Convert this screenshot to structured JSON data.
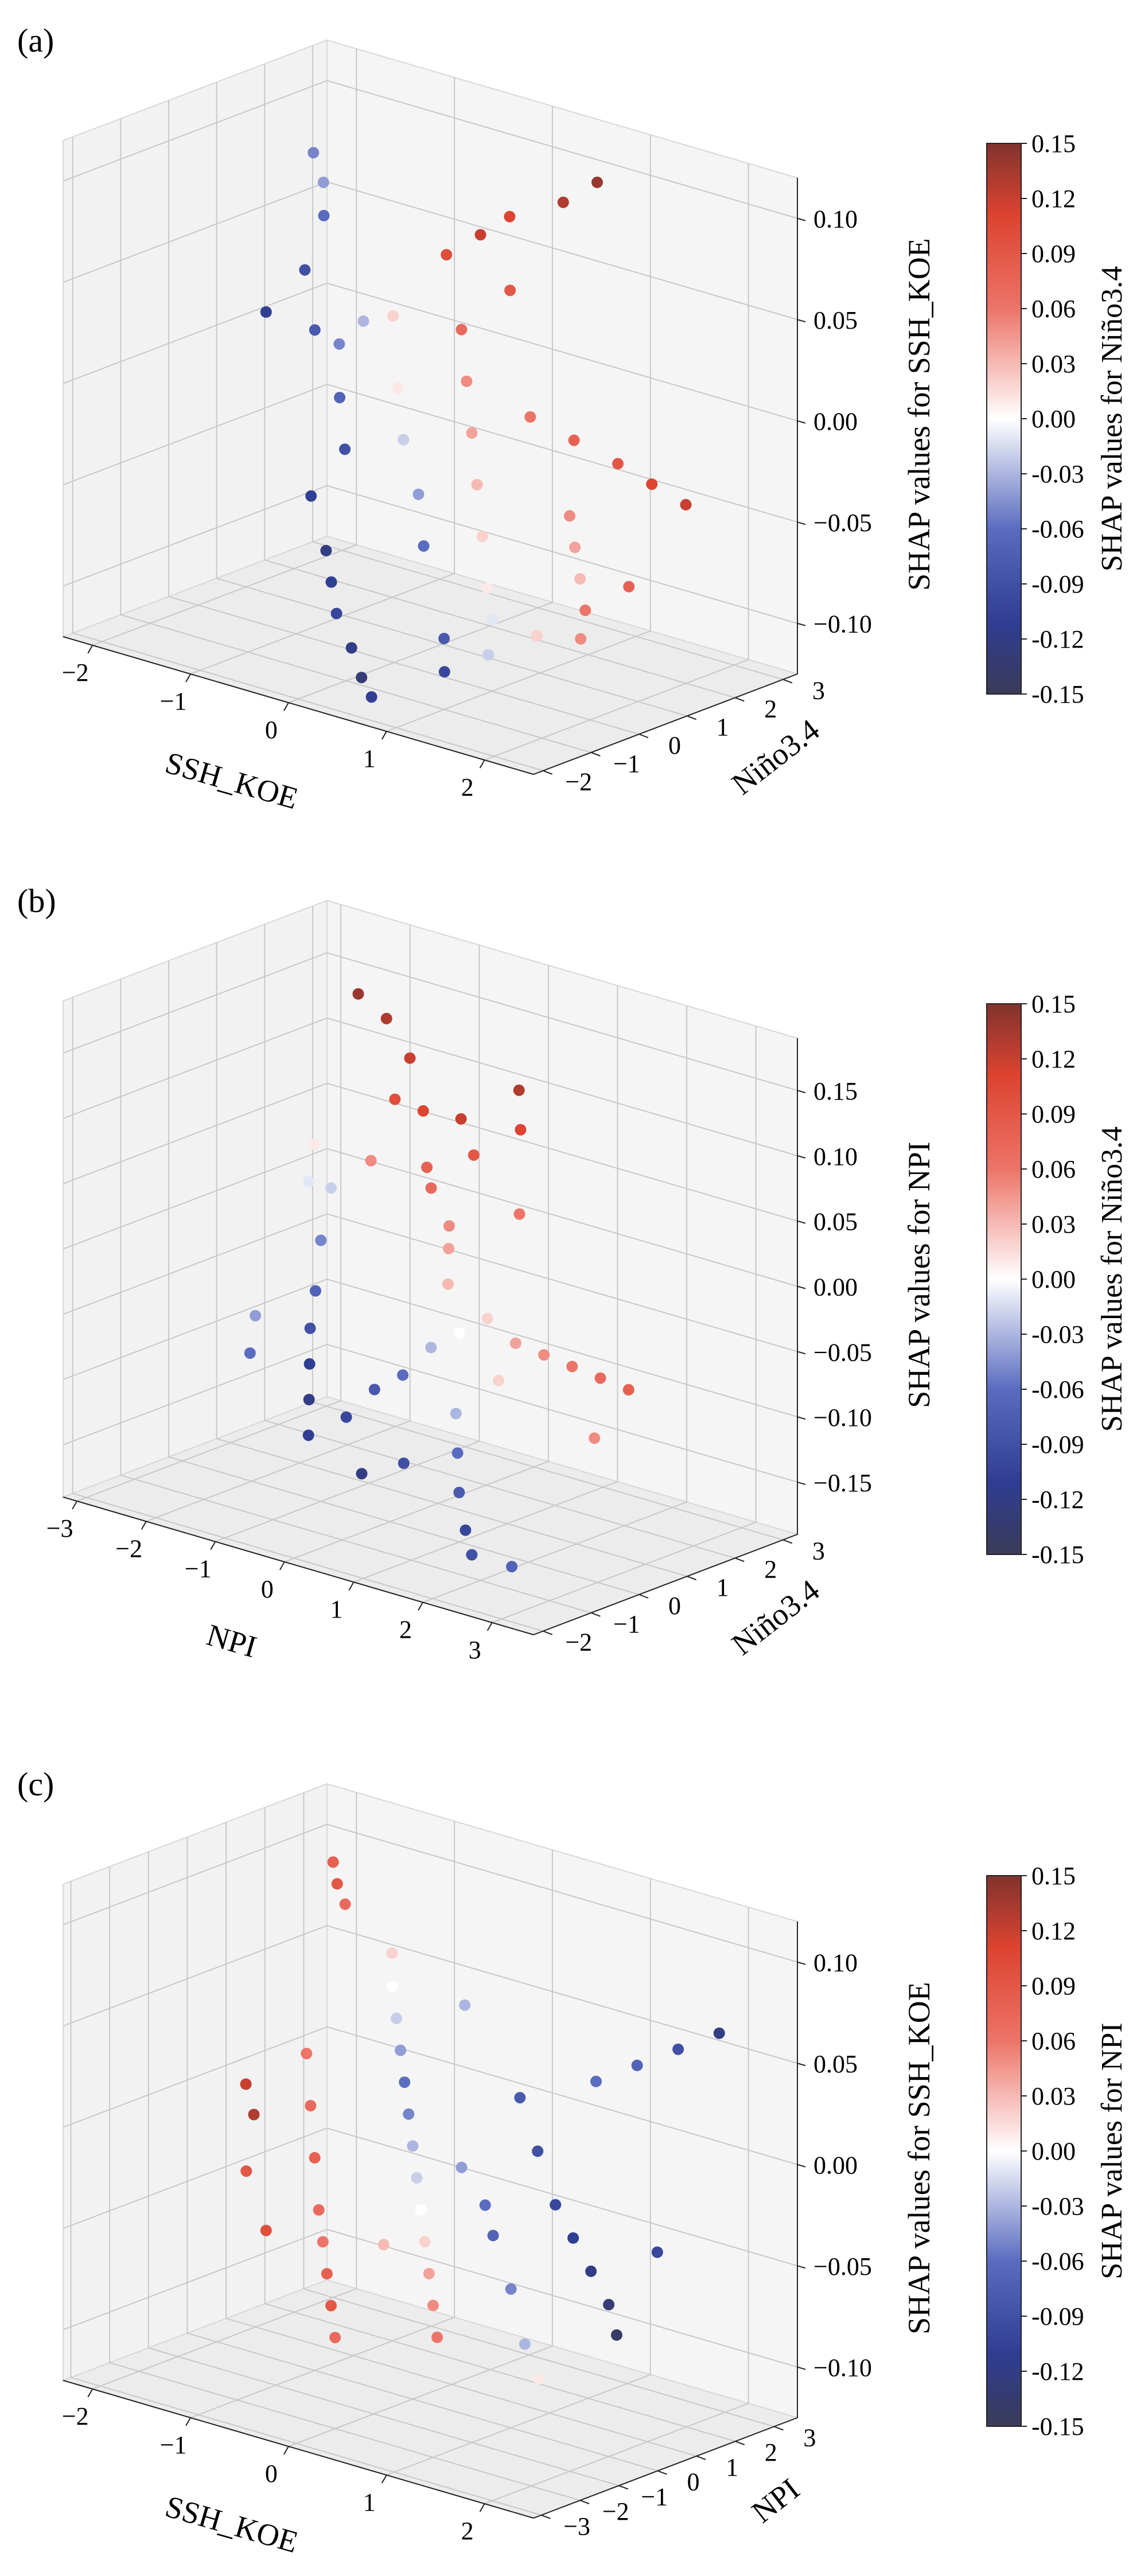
{
  "chart_data": [
    {
      "type": "scatter",
      "panel_label": "(a)",
      "x_label": "SSH_KOE",
      "y_label": "Niño3.4",
      "z_label": "SHAP values for SSH_KOE",
      "colorbar_label": "SHAP values for Niño3.4",
      "x_ticks": [
        "−2",
        "−1",
        "0",
        "1",
        "2"
      ],
      "y_ticks": [
        "−2",
        "−1",
        "0",
        "1",
        "2",
        "3"
      ],
      "z_ticks": [
        "−0.10",
        "−0.05",
        "0.00",
        "0.05",
        "0.10"
      ],
      "colorbar_ticks": [
        "-0.15",
        "-0.12",
        "-0.09",
        "-0.06",
        "-0.03",
        "0.00",
        "0.03",
        "0.06",
        "0.09",
        "0.12",
        "0.15"
      ],
      "x_range": [
        -2.3,
        2.5
      ],
      "y_range": [
        -2.2,
        3.3
      ],
      "z_range": [
        -0.125,
        0.12
      ],
      "c_range": [
        -0.15,
        0.15
      ],
      "points": [
        [
          -1.9,
          2.2,
          0.08,
          -0.05
        ],
        [
          -1.7,
          2.0,
          0.07,
          -0.04
        ],
        [
          -1.5,
          1.6,
          0.06,
          -0.06
        ],
        [
          -1.4,
          1.0,
          0.04,
          -0.09
        ],
        [
          -1.6,
          0.6,
          0.02,
          -0.11
        ],
        [
          -1.2,
          0.8,
          0.015,
          -0.08
        ],
        [
          -1.0,
          0.9,
          0.01,
          -0.05
        ],
        [
          -0.9,
          1.2,
          0.02,
          -0.03
        ],
        [
          -0.8,
          0.5,
          -0.01,
          -0.07
        ],
        [
          -0.6,
          0.2,
          -0.03,
          -0.09
        ],
        [
          -0.7,
          -0.3,
          -0.05,
          -0.11
        ],
        [
          -0.4,
          -0.6,
          -0.07,
          -0.12
        ],
        [
          -0.2,
          -0.9,
          -0.08,
          -0.11
        ],
        [
          0.0,
          -1.2,
          -0.09,
          -0.1
        ],
        [
          0.3,
          -1.5,
          -0.1,
          -0.12
        ],
        [
          0.5,
          -1.7,
          -0.11,
          -0.13
        ],
        [
          0.7,
          -1.9,
          -0.115,
          -0.11
        ],
        [
          -0.2,
          1.5,
          0.06,
          0.1
        ],
        [
          0.0,
          1.8,
          0.07,
          0.12
        ],
        [
          0.2,
          2.0,
          0.08,
          0.11
        ],
        [
          0.4,
          1.6,
          0.05,
          0.09
        ],
        [
          0.6,
          2.3,
          0.09,
          0.13
        ],
        [
          0.8,
          2.6,
          0.1,
          0.14
        ],
        [
          0.1,
          1.2,
          0.03,
          0.07
        ],
        [
          0.3,
          0.9,
          0.01,
          0.05
        ],
        [
          0.5,
          0.6,
          -0.01,
          0.04
        ],
        [
          0.7,
          0.3,
          -0.03,
          0.03
        ],
        [
          0.9,
          0.0,
          -0.05,
          0.02
        ],
        [
          1.1,
          -0.3,
          -0.07,
          0.01
        ],
        [
          1.3,
          -0.6,
          -0.08,
          -0.01
        ],
        [
          0.9,
          1.0,
          0.0,
          0.06
        ],
        [
          1.2,
          1.3,
          -0.01,
          0.08
        ],
        [
          1.5,
          1.6,
          -0.02,
          0.09
        ],
        [
          1.7,
          1.9,
          -0.03,
          0.11
        ],
        [
          1.9,
          2.2,
          -0.04,
          0.12
        ],
        [
          1.4,
          0.8,
          -0.04,
          0.05
        ],
        [
          1.6,
          0.5,
          -0.05,
          0.04
        ],
        [
          1.8,
          0.2,
          -0.06,
          0.03
        ],
        [
          2.0,
          -0.1,
          -0.07,
          0.06
        ],
        [
          2.2,
          0.4,
          -0.06,
          0.08
        ],
        [
          -0.5,
          1.0,
          0.03,
          0.02
        ],
        [
          -0.3,
          0.7,
          0.0,
          0.01
        ],
        [
          -0.1,
          0.4,
          -0.02,
          -0.02
        ],
        [
          0.2,
          0.1,
          -0.04,
          -0.04
        ],
        [
          0.4,
          -0.2,
          -0.06,
          -0.06
        ],
        [
          1.0,
          -1.0,
          -0.09,
          -0.08
        ],
        [
          1.2,
          -1.4,
          -0.1,
          -0.1
        ],
        [
          1.5,
          -1.1,
          -0.09,
          -0.02
        ],
        [
          1.8,
          -0.7,
          -0.08,
          0.02
        ],
        [
          2.1,
          -0.4,
          -0.08,
          0.05
        ]
      ]
    },
    {
      "type": "scatter",
      "panel_label": "(b)",
      "x_label": "NPI",
      "y_label": "Niño3.4",
      "z_label": "SHAP values for NPI",
      "colorbar_label": "SHAP values for Niño3.4",
      "x_ticks": [
        "−3",
        "−2",
        "−1",
        "0",
        "1",
        "2",
        "3"
      ],
      "y_ticks": [
        "−2",
        "−1",
        "0",
        "1",
        "2",
        "3"
      ],
      "z_ticks": [
        "−0.15",
        "−0.10",
        "−0.05",
        "0.00",
        "0.05",
        "0.10",
        "0.15"
      ],
      "colorbar_ticks": [
        "-0.15",
        "-0.12",
        "-0.09",
        "-0.06",
        "-0.03",
        "0.00",
        "0.03",
        "0.06",
        "0.09",
        "0.12",
        "0.15"
      ],
      "x_range": [
        -3.2,
        3.6
      ],
      "y_range": [
        -2.2,
        3.3
      ],
      "z_range": [
        -0.19,
        0.19
      ],
      "c_range": [
        -0.15,
        0.15
      ],
      "points": [
        [
          -1.5,
          1.5,
          0.17,
          0.14
        ],
        [
          -1.3,
          1.8,
          0.15,
          0.13
        ],
        [
          -1.1,
          2.0,
          0.12,
          0.12
        ],
        [
          -0.9,
          1.4,
          0.1,
          0.1
        ],
        [
          -0.7,
          1.7,
          0.09,
          0.11
        ],
        [
          -0.5,
          2.2,
          0.08,
          0.12
        ],
        [
          -0.3,
          1.2,
          0.06,
          0.08
        ],
        [
          -0.1,
          1.0,
          0.05,
          0.07
        ],
        [
          0.1,
          1.6,
          0.07,
          0.09
        ],
        [
          0.3,
          0.8,
          0.03,
          0.05
        ],
        [
          0.5,
          0.5,
          0.02,
          0.04
        ],
        [
          0.7,
          0.2,
          0.0,
          0.03
        ],
        [
          -1.2,
          0.5,
          0.04,
          -0.02
        ],
        [
          -1.0,
          0.0,
          0.01,
          -0.05
        ],
        [
          -0.8,
          -0.4,
          -0.02,
          -0.07
        ],
        [
          -0.6,
          -0.8,
          -0.04,
          -0.09
        ],
        [
          -0.4,
          -1.1,
          -0.06,
          -0.11
        ],
        [
          -0.2,
          -1.4,
          -0.08,
          -0.12
        ],
        [
          0.0,
          -1.7,
          -0.1,
          -0.11
        ],
        [
          0.2,
          -1.2,
          -0.09,
          -0.1
        ],
        [
          0.4,
          -0.9,
          -0.07,
          -0.08
        ],
        [
          0.6,
          -0.6,
          -0.06,
          -0.06
        ],
        [
          0.8,
          -0.3,
          -0.04,
          -0.03
        ],
        [
          1.0,
          0.0,
          -0.03,
          0.0
        ],
        [
          1.2,
          0.3,
          -0.02,
          0.02
        ],
        [
          1.4,
          0.6,
          -0.04,
          0.04
        ],
        [
          1.6,
          0.9,
          -0.05,
          0.05
        ],
        [
          1.8,
          1.2,
          -0.06,
          0.06
        ],
        [
          2.0,
          1.5,
          -0.07,
          0.07
        ],
        [
          2.2,
          1.8,
          -0.08,
          0.08
        ],
        [
          1.3,
          -0.5,
          -0.08,
          -0.03
        ],
        [
          1.6,
          -0.9,
          -0.1,
          -0.06
        ],
        [
          1.9,
          -1.3,
          -0.12,
          -0.08
        ],
        [
          2.2,
          -1.6,
          -0.14,
          -0.1
        ],
        [
          2.5,
          -1.9,
          -0.15,
          -0.09
        ],
        [
          2.8,
          -1.5,
          -0.16,
          -0.07
        ],
        [
          -1.6,
          -0.5,
          -0.05,
          -0.04
        ],
        [
          -1.4,
          -0.9,
          -0.07,
          -0.06
        ],
        [
          -0.9,
          0.9,
          0.06,
          0.05
        ],
        [
          0.2,
          2.4,
          0.11,
          0.13
        ],
        [
          0.5,
          2.0,
          0.09,
          0.11
        ],
        [
          0.9,
          1.4,
          0.04,
          0.06
        ],
        [
          -1.8,
          0.9,
          0.03,
          -0.01
        ],
        [
          -2.0,
          1.3,
          0.05,
          0.01
        ],
        [
          1.1,
          -1.3,
          -0.11,
          -0.09
        ],
        [
          0.7,
          -1.6,
          -0.12,
          -0.12
        ],
        [
          1.5,
          0.1,
          -0.06,
          0.02
        ],
        [
          2.4,
          0.8,
          -0.1,
          0.05
        ]
      ]
    },
    {
      "type": "scatter",
      "panel_label": "(c)",
      "x_label": "SSH_KOE",
      "y_label": "NPI",
      "z_label": "SHAP values for SSH_KOE",
      "colorbar_label": "SHAP values for NPI",
      "x_ticks": [
        "−2",
        "−1",
        "0",
        "1",
        "2"
      ],
      "y_ticks": [
        "−3",
        "−2",
        "−1",
        "0",
        "1",
        "2",
        "3"
      ],
      "z_ticks": [
        "−0.10",
        "−0.05",
        "0.00",
        "0.05",
        "0.10"
      ],
      "colorbar_ticks": [
        "-0.15",
        "-0.12",
        "-0.09",
        "-0.06",
        "-0.03",
        "0.00",
        "0.03",
        "0.06",
        "0.09",
        "0.12",
        "0.15"
      ],
      "x_range": [
        -2.3,
        2.5
      ],
      "y_range": [
        -3.2,
        3.6
      ],
      "z_range": [
        -0.125,
        0.12
      ],
      "c_range": [
        -0.15,
        0.15
      ],
      "points": [
        [
          -2.0,
          3.0,
          0.09,
          0.08
        ],
        [
          -1.8,
          2.6,
          0.085,
          0.09
        ],
        [
          -1.6,
          2.3,
          0.08,
          0.07
        ],
        [
          -1.9,
          0.5,
          0.0,
          0.12
        ],
        [
          -1.7,
          0.2,
          -0.01,
          0.13
        ],
        [
          -1.2,
          2.5,
          0.06,
          0.02
        ],
        [
          -1.0,
          2.0,
          0.05,
          0.0
        ],
        [
          -0.8,
          1.6,
          0.04,
          -0.02
        ],
        [
          -0.6,
          1.2,
          0.03,
          -0.04
        ],
        [
          -0.4,
          0.8,
          0.02,
          -0.06
        ],
        [
          -0.2,
          0.4,
          0.01,
          -0.05
        ],
        [
          0.0,
          0.0,
          0.0,
          -0.03
        ],
        [
          0.2,
          -0.4,
          -0.01,
          -0.02
        ],
        [
          0.4,
          -0.8,
          -0.02,
          0.0
        ],
        [
          0.6,
          -1.2,
          -0.03,
          0.02
        ],
        [
          0.8,
          -1.6,
          -0.04,
          0.04
        ],
        [
          1.0,
          -2.0,
          -0.05,
          0.05
        ],
        [
          1.2,
          -2.4,
          -0.06,
          0.06
        ],
        [
          -1.4,
          0.8,
          0.02,
          0.06
        ],
        [
          -1.2,
          0.4,
          0.0,
          0.07
        ],
        [
          -1.0,
          0.0,
          -0.02,
          0.08
        ],
        [
          -0.8,
          -0.4,
          -0.04,
          0.07
        ],
        [
          -0.6,
          -0.8,
          -0.05,
          0.06
        ],
        [
          -0.4,
          -1.2,
          -0.06,
          0.08
        ],
        [
          -0.2,
          -1.6,
          -0.07,
          0.09
        ],
        [
          0.0,
          -2.0,
          -0.08,
          0.07
        ],
        [
          0.5,
          1.5,
          0.02,
          -0.08
        ],
        [
          0.8,
          1.2,
          0.0,
          -0.09
        ],
        [
          1.1,
          0.9,
          -0.02,
          -0.1
        ],
        [
          1.4,
          0.6,
          -0.03,
          -0.11
        ],
        [
          1.7,
          0.3,
          -0.04,
          -0.12
        ],
        [
          2.0,
          0.0,
          -0.05,
          -0.13
        ],
        [
          2.2,
          -0.3,
          -0.06,
          -0.14
        ],
        [
          1.0,
          2.2,
          0.03,
          -0.06
        ],
        [
          1.3,
          2.5,
          0.04,
          -0.07
        ],
        [
          1.6,
          2.8,
          0.05,
          -0.09
        ],
        [
          1.9,
          3.1,
          0.06,
          -0.12
        ],
        [
          0.3,
          0.5,
          -0.01,
          -0.04
        ],
        [
          0.7,
          0.1,
          -0.02,
          -0.06
        ],
        [
          1.2,
          -0.5,
          -0.05,
          -0.05
        ],
        [
          1.5,
          -0.9,
          -0.07,
          -0.03
        ],
        [
          1.8,
          -1.3,
          -0.08,
          0.01
        ],
        [
          -1.5,
          -0.5,
          -0.03,
          0.09
        ],
        [
          -1.1,
          -1.0,
          -0.05,
          0.1
        ],
        [
          0.9,
          -0.2,
          -0.03,
          -0.07
        ],
        [
          -0.3,
          2.1,
          0.05,
          -0.03
        ],
        [
          2.1,
          1.0,
          -0.03,
          -0.1
        ],
        [
          0.1,
          -1.0,
          -0.04,
          0.03
        ]
      ]
    }
  ]
}
